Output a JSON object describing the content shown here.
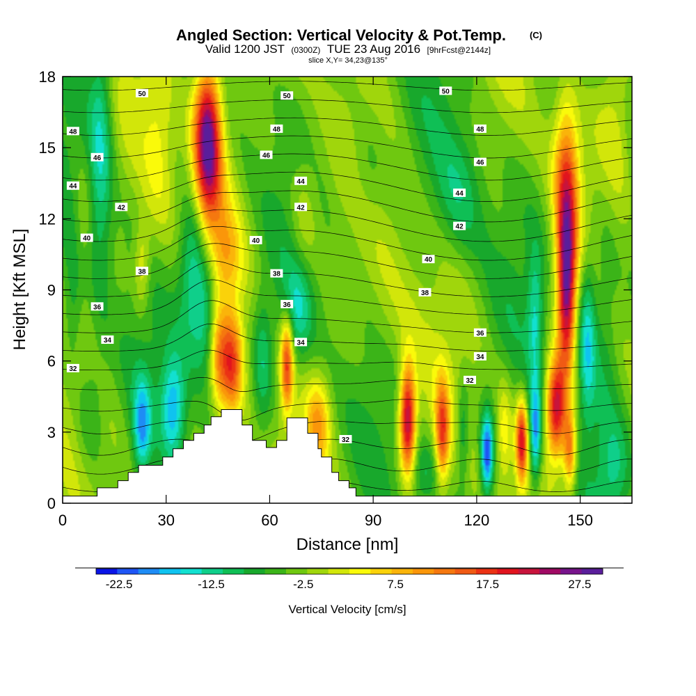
{
  "header": {
    "title_main": "Angled Section: Vertical Velocity & Pot.Temp.",
    "title_unit": "(C)",
    "valid_prefix": "Valid 1200 JST",
    "valid_utc": "(0300Z)",
    "valid_date": "TUE 23 Aug 2016",
    "forecast_tag": "[9hrFcst@2144z]",
    "slice": "slice X,Y= 34,23@135°"
  },
  "chart_data": {
    "type": "heatmap",
    "xlabel": "Distance [nm]",
    "ylabel": "Height [Kft MSL]",
    "xlim": [
      0,
      165
    ],
    "ylim": [
      0,
      18
    ],
    "x_ticks": [
      "0",
      "30",
      "60",
      "90",
      "120",
      "150"
    ],
    "y_ticks": [
      "0",
      "3",
      "6",
      "9",
      "12",
      "15",
      "18"
    ],
    "grid": false,
    "terrain": [
      [
        0,
        0.3
      ],
      [
        10,
        0.3
      ],
      [
        10,
        0.65
      ],
      [
        16,
        0.65
      ],
      [
        16,
        0.95
      ],
      [
        19,
        0.95
      ],
      [
        19,
        1.3
      ],
      [
        22,
        1.3
      ],
      [
        22,
        1.6
      ],
      [
        29,
        1.6
      ],
      [
        29,
        1.95
      ],
      [
        32,
        1.95
      ],
      [
        32,
        2.3
      ],
      [
        35,
        2.3
      ],
      [
        35,
        2.65
      ],
      [
        38,
        2.65
      ],
      [
        38,
        2.95
      ],
      [
        41,
        2.95
      ],
      [
        41,
        3.3
      ],
      [
        43,
        3.3
      ],
      [
        43,
        3.65
      ],
      [
        46,
        3.65
      ],
      [
        46,
        3.95
      ],
      [
        52,
        3.95
      ],
      [
        52,
        3.3
      ],
      [
        55,
        3.3
      ],
      [
        55,
        2.65
      ],
      [
        59,
        2.65
      ],
      [
        59,
        2.35
      ],
      [
        62,
        2.35
      ],
      [
        62,
        2.65
      ],
      [
        65,
        2.65
      ],
      [
        65,
        3.6
      ],
      [
        71,
        3.6
      ],
      [
        71,
        2.95
      ],
      [
        74,
        2.95
      ],
      [
        74,
        2.3
      ],
      [
        75,
        2.3
      ],
      [
        75,
        1.95
      ],
      [
        78,
        1.95
      ],
      [
        78,
        1.3
      ],
      [
        80,
        1.3
      ],
      [
        80,
        0.95
      ],
      [
        83,
        0.95
      ],
      [
        83,
        0.65
      ],
      [
        85,
        0.65
      ],
      [
        85,
        0.3
      ],
      [
        165,
        0.3
      ]
    ],
    "colorbar": {
      "title": "Vertical Velocity [cm/s]",
      "labels": [
        "-22.5",
        "-12.5",
        "-2.5",
        "7.5",
        "17.5",
        "27.5"
      ],
      "label_values": [
        -22.5,
        -12.5,
        -2.5,
        7.5,
        17.5,
        27.5
      ],
      "min": -25,
      "max": 30,
      "step": 2.5,
      "colors": [
        "#0a14e6",
        "#1e55f5",
        "#1e8cf5",
        "#0fc3f0",
        "#12e0d0",
        "#0fcf8a",
        "#0fbf55",
        "#18a82c",
        "#3bb418",
        "#6fc810",
        "#a0d60c",
        "#d2e60a",
        "#fafa0a",
        "#fad20a",
        "#fab40a",
        "#fa960a",
        "#f5780f",
        "#f05a14",
        "#eb3214",
        "#e1141e",
        "#c8143c",
        "#a00a64",
        "#78148c",
        "#5a1e9b"
      ]
    },
    "velocity_field": {
      "background": -1.5,
      "cells": [
        {
          "x": 42,
          "y": 15.5,
          "sx": 2.6,
          "sy": 2.2,
          "w": 29
        },
        {
          "x": 42,
          "y": 13.2,
          "sx": 4.5,
          "sy": 3.5,
          "w": 11
        },
        {
          "x": 11,
          "y": 15,
          "sx": 2.4,
          "sy": 4,
          "w": -10
        },
        {
          "x": 28,
          "y": 15,
          "sx": 3,
          "sy": 3,
          "w": 5
        },
        {
          "x": 38,
          "y": 10,
          "sx": 3,
          "sy": 2.5,
          "w": -16
        },
        {
          "x": 42,
          "y": 8,
          "sx": 2.6,
          "sy": 2,
          "w": -12
        },
        {
          "x": 32,
          "y": 4,
          "sx": 2.5,
          "sy": 1.6,
          "w": -14
        },
        {
          "x": 23,
          "y": 3.2,
          "sx": 1.8,
          "sy": 1.4,
          "w": -14
        },
        {
          "x": 49,
          "y": 5.9,
          "sx": 2.2,
          "sy": 1.5,
          "w": 19
        },
        {
          "x": 45,
          "y": 6.2,
          "sx": 1.8,
          "sy": 1.6,
          "w": 11
        },
        {
          "x": 65,
          "y": 5.9,
          "sx": 1.3,
          "sy": 1.4,
          "w": 22
        },
        {
          "x": 58,
          "y": 6,
          "sx": 2,
          "sy": 2,
          "w": -8
        },
        {
          "x": 74,
          "y": 3.4,
          "sx": 2.4,
          "sy": 1.3,
          "w": 12
        },
        {
          "x": 68,
          "y": 8.2,
          "sx": 3,
          "sy": 1.5,
          "w": -9
        },
        {
          "x": 48,
          "y": 10.5,
          "sx": 3,
          "sy": 1.3,
          "w": 7
        },
        {
          "x": 23,
          "y": 10,
          "sx": 1.6,
          "sy": 1.3,
          "w": 8
        },
        {
          "x": 100,
          "y": 3.5,
          "sx": 1.6,
          "sy": 1.6,
          "w": 30
        },
        {
          "x": 110,
          "y": 3,
          "sx": 1.4,
          "sy": 1.5,
          "w": 20
        },
        {
          "x": 123,
          "y": 2.1,
          "sx": 1.3,
          "sy": 1.2,
          "w": -21
        },
        {
          "x": 116,
          "y": 3,
          "sx": 1.3,
          "sy": 1.5,
          "w": -8
        },
        {
          "x": 133,
          "y": 2.6,
          "sx": 1.2,
          "sy": 1.2,
          "w": 25
        },
        {
          "x": 137,
          "y": 2.9,
          "sx": 1.2,
          "sy": 1.5,
          "w": -17
        },
        {
          "x": 143,
          "y": 4,
          "sx": 2,
          "sy": 1.5,
          "w": 28
        },
        {
          "x": 147,
          "y": 2.2,
          "sx": 1.3,
          "sy": 1.2,
          "w": 18
        },
        {
          "x": 146,
          "y": 9,
          "sx": 1.8,
          "sy": 2.5,
          "w": 30
        },
        {
          "x": 146,
          "y": 13.5,
          "sx": 2.5,
          "sy": 2.5,
          "w": 18
        },
        {
          "x": 152,
          "y": 7,
          "sx": 1.8,
          "sy": 2.5,
          "w": -13
        },
        {
          "x": 137,
          "y": 8,
          "sx": 1.6,
          "sy": 2,
          "w": -9
        },
        {
          "x": 157,
          "y": 9,
          "sx": 3,
          "sy": 4,
          "w": -6
        },
        {
          "x": 95,
          "y": 8,
          "sx": 6,
          "sy": 2.5,
          "w": 3
        },
        {
          "x": 115,
          "y": 13,
          "sx": 5,
          "sy": 2,
          "w": -6
        },
        {
          "x": 88,
          "y": 14,
          "sx": 4,
          "sy": 2,
          "w": -5
        },
        {
          "x": 70,
          "y": 12,
          "sx": 3,
          "sy": 2,
          "w": 6
        },
        {
          "x": 8,
          "y": 4,
          "sx": 3,
          "sy": 1.8,
          "w": -7
        },
        {
          "x": 3,
          "y": 8,
          "sx": 2,
          "sy": 2,
          "w": -6
        },
        {
          "x": 160,
          "y": 1.5,
          "sx": 3,
          "sy": 1.4,
          "w": -6
        },
        {
          "x": 105,
          "y": 1.3,
          "sx": 3,
          "sy": 1,
          "w": -6
        },
        {
          "x": 128,
          "y": 3,
          "sx": 1.5,
          "sy": 1.5,
          "w": 8
        },
        {
          "x": 160,
          "y": 16,
          "sx": 4,
          "sy": 3,
          "w": 6
        },
        {
          "x": 6,
          "y": 12,
          "sx": 2,
          "sy": 2,
          "w": 4
        }
      ]
    },
    "theta_contours": {
      "levels": [
        30,
        31,
        32,
        33,
        34,
        35,
        36,
        37,
        38,
        39,
        40,
        41,
        42,
        43,
        44,
        45,
        46,
        47,
        48,
        49,
        50,
        51,
        52
      ],
      "labels": [
        {
          "text": "50",
          "x": 23,
          "y": 17.3
        },
        {
          "text": "48",
          "x": 3,
          "y": 15.7
        },
        {
          "text": "46",
          "x": 10,
          "y": 14.6
        },
        {
          "text": "44",
          "x": 3,
          "y": 13.4
        },
        {
          "text": "42",
          "x": 17,
          "y": 12.5
        },
        {
          "text": "40",
          "x": 7,
          "y": 11.2
        },
        {
          "text": "38",
          "x": 23,
          "y": 9.8
        },
        {
          "text": "36",
          "x": 10,
          "y": 8.3
        },
        {
          "text": "34",
          "x": 13,
          "y": 6.9
        },
        {
          "text": "32",
          "x": 3,
          "y": 5.7
        },
        {
          "text": "50",
          "x": 65,
          "y": 17.2
        },
        {
          "text": "48",
          "x": 62,
          "y": 15.8
        },
        {
          "text": "46",
          "x": 59,
          "y": 14.7
        },
        {
          "text": "44",
          "x": 69,
          "y": 13.6
        },
        {
          "text": "42",
          "x": 69,
          "y": 12.5
        },
        {
          "text": "40",
          "x": 56,
          "y": 11.1
        },
        {
          "text": "38",
          "x": 62,
          "y": 9.7
        },
        {
          "text": "36",
          "x": 65,
          "y": 8.4
        },
        {
          "text": "34",
          "x": 69,
          "y": 6.8
        },
        {
          "text": "32",
          "x": 82,
          "y": 2.7
        },
        {
          "text": "50",
          "x": 111,
          "y": 17.4
        },
        {
          "text": "48",
          "x": 121,
          "y": 15.8
        },
        {
          "text": "46",
          "x": 121,
          "y": 14.4
        },
        {
          "text": "44",
          "x": 115,
          "y": 13.1
        },
        {
          "text": "42",
          "x": 115,
          "y": 11.7
        },
        {
          "text": "40",
          "x": 106,
          "y": 10.3
        },
        {
          "text": "38",
          "x": 105,
          "y": 8.9
        },
        {
          "text": "36",
          "x": 121,
          "y": 7.2
        },
        {
          "text": "34",
          "x": 121,
          "y": 6.2
        },
        {
          "text": "32",
          "x": 118,
          "y": 5.2
        }
      ]
    }
  }
}
